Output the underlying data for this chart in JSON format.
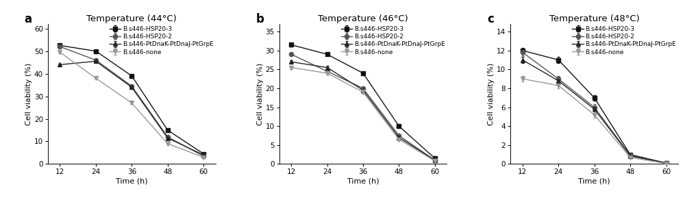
{
  "panels": [
    {
      "label": "a",
      "title": "Temperature (44°C)",
      "xlabel": "Time (h)",
      "ylabel": "Cell viability (%)",
      "x": [
        12,
        24,
        36,
        48,
        60
      ],
      "ylim": [
        0,
        62
      ],
      "yticks": [
        0,
        10,
        20,
        30,
        40,
        50,
        60
      ],
      "series": [
        {
          "name": "B.s446-HSP20-3",
          "y": [
            52.5,
            50.0,
            39.0,
            15.0,
            4.5
          ],
          "yerr": [
            0.5,
            0.5,
            0.5,
            0.5,
            0.3
          ],
          "marker": "s",
          "color": "#111111",
          "linestyle": "-"
        },
        {
          "name": "B.s446-HSP20-2",
          "y": [
            52.0,
            46.0,
            34.5,
            12.0,
            3.5
          ],
          "yerr": [
            0.5,
            0.4,
            0.4,
            0.4,
            0.3
          ],
          "marker": "o",
          "color": "#555555",
          "linestyle": "-"
        },
        {
          "name": "B.s446-PtDnaK-PtDnaJ-PtGrpE",
          "y": [
            44.0,
            45.5,
            34.0,
            11.5,
            4.0
          ],
          "yerr": [
            0.5,
            0.5,
            0.4,
            0.4,
            0.3
          ],
          "marker": "^",
          "color": "#222222",
          "linestyle": "-"
        },
        {
          "name": "B.s446-none",
          "y": [
            49.5,
            38.0,
            27.0,
            9.0,
            3.0
          ],
          "yerr": [
            0.5,
            0.4,
            0.4,
            0.4,
            0.3
          ],
          "marker": "v",
          "color": "#999999",
          "linestyle": "-"
        }
      ]
    },
    {
      "label": "b",
      "title": "Temperature (46°C)",
      "xlabel": "Time (h)",
      "ylabel": "Cell viability (%)",
      "x": [
        12,
        24,
        36,
        48,
        60
      ],
      "ylim": [
        0,
        37
      ],
      "yticks": [
        0,
        5,
        10,
        15,
        20,
        25,
        30,
        35
      ],
      "series": [
        {
          "name": "B.s446-HSP20-3",
          "y": [
            31.5,
            29.0,
            24.0,
            10.0,
            1.5
          ],
          "yerr": [
            0.4,
            0.4,
            0.4,
            0.4,
            0.2
          ],
          "marker": "s",
          "color": "#111111",
          "linestyle": "-"
        },
        {
          "name": "B.s446-HSP20-2",
          "y": [
            29.0,
            24.5,
            20.0,
            7.5,
            1.0
          ],
          "yerr": [
            0.4,
            0.4,
            0.4,
            0.3,
            0.2
          ],
          "marker": "o",
          "color": "#555555",
          "linestyle": "-"
        },
        {
          "name": "B.s446-PtDnaK-PtDnaJ-PtGrpE",
          "y": [
            27.0,
            25.5,
            19.5,
            7.0,
            1.0
          ],
          "yerr": [
            0.4,
            0.4,
            0.4,
            0.3,
            0.2
          ],
          "marker": "^",
          "color": "#222222",
          "linestyle": "-"
        },
        {
          "name": "B.s446-none",
          "y": [
            25.5,
            24.0,
            19.0,
            6.5,
            0.8
          ],
          "yerr": [
            0.4,
            0.4,
            0.4,
            0.3,
            0.2
          ],
          "marker": "v",
          "color": "#999999",
          "linestyle": "-"
        }
      ]
    },
    {
      "label": "c",
      "title": "Temperature (48°C)",
      "xlabel": "Time (h)",
      "ylabel": "Cell viability (%)",
      "x": [
        12,
        24,
        36,
        48,
        60
      ],
      "ylim": [
        0,
        14.8
      ],
      "yticks": [
        0,
        2,
        4,
        6,
        8,
        10,
        12,
        14
      ],
      "series": [
        {
          "name": "B.s446-HSP20-3",
          "y": [
            12.0,
            11.0,
            7.0,
            1.0,
            0.1
          ],
          "yerr": [
            0.3,
            0.3,
            0.3,
            0.15,
            0.05
          ],
          "marker": "s",
          "color": "#111111",
          "linestyle": "-"
        },
        {
          "name": "B.s446-HSP20-2",
          "y": [
            11.8,
            9.0,
            6.0,
            0.9,
            0.1
          ],
          "yerr": [
            0.3,
            0.3,
            0.3,
            0.15,
            0.05
          ],
          "marker": "o",
          "color": "#555555",
          "linestyle": "-"
        },
        {
          "name": "B.s446-PtDnaK-PtDnaJ-PtGrpE",
          "y": [
            11.0,
            8.8,
            5.8,
            0.85,
            0.1
          ],
          "yerr": [
            0.3,
            0.3,
            0.3,
            0.15,
            0.05
          ],
          "marker": "^",
          "color": "#222222",
          "linestyle": "-"
        },
        {
          "name": "B.s446-none",
          "y": [
            9.0,
            8.3,
            5.2,
            0.7,
            0.05
          ],
          "yerr": [
            0.3,
            0.3,
            0.3,
            0.12,
            0.03
          ],
          "marker": "v",
          "color": "#999999",
          "linestyle": "-"
        }
      ]
    }
  ],
  "background_color": "#ffffff",
  "legend_fontsize": 6.5,
  "axis_label_fontsize": 8,
  "title_fontsize": 9.5,
  "panel_label_fontsize": 12,
  "tick_fontsize": 7.5,
  "markersize": 4.5,
  "linewidth": 1.0,
  "capsize": 1.5,
  "elinewidth": 0.7
}
